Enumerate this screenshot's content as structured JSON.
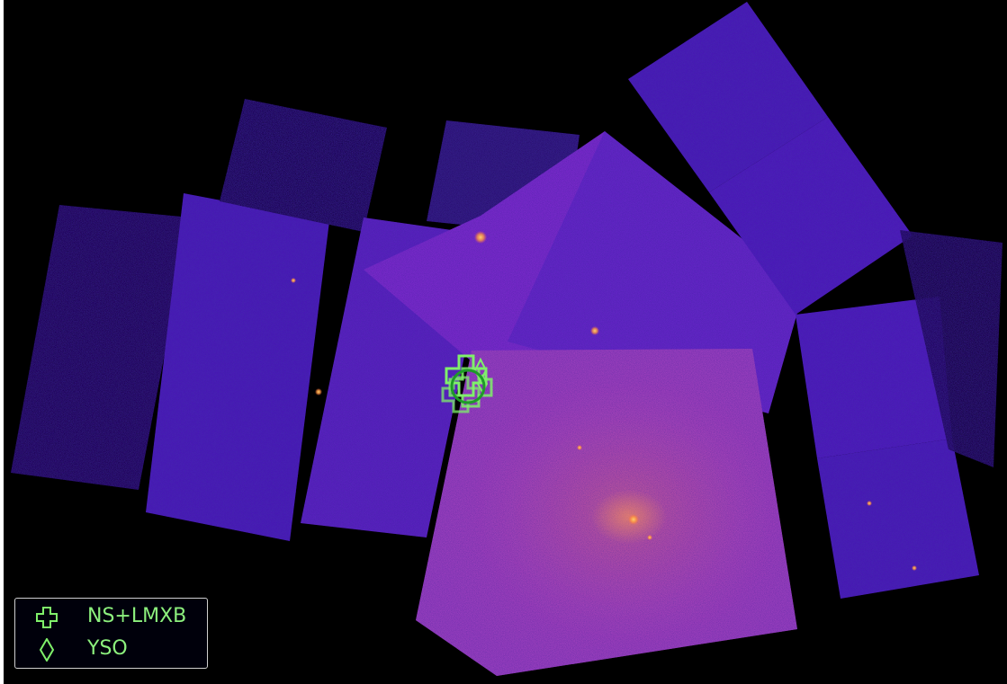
{
  "image": {
    "description_colors": {
      "background": "#000000",
      "field_low": "#4a14c8",
      "field_mid": "#8a2ed0",
      "field_high": "#d26a7a",
      "hotspot": "#ffb24a",
      "marker_green": "#7ff06a",
      "circle_green": "#1e9b28"
    }
  },
  "legend": {
    "items": [
      {
        "symbol": "cross-icon",
        "label": "NS+LMXB"
      },
      {
        "symbol": "diamond-icon",
        "label": "YSO"
      }
    ]
  }
}
